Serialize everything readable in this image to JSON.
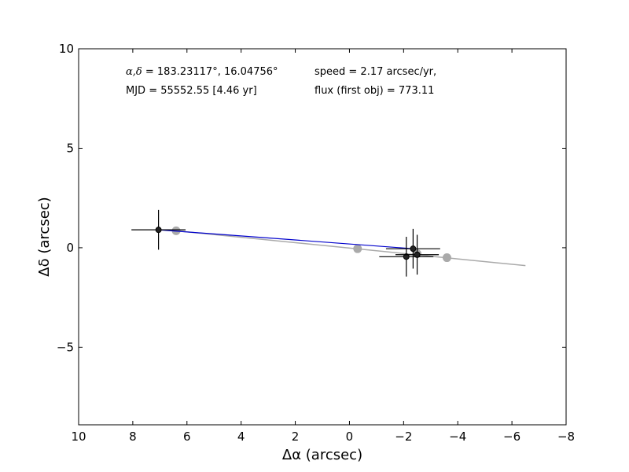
{
  "chart_data": {
    "type": "scatter",
    "xlabel": "Δα (arcsec)",
    "ylabel": "Δδ (arcsec)",
    "xlim": [
      10,
      -8
    ],
    "ylim": [
      -8.9,
      10
    ],
    "x_ticks": [
      10,
      8,
      6,
      4,
      2,
      0,
      -2,
      -4,
      -6,
      -8
    ],
    "y_ticks": [
      -5,
      0,
      5,
      10
    ],
    "x_tick_labels": [
      "10",
      "8",
      "6",
      "4",
      "2",
      "0",
      "−2",
      "−4",
      "−6",
      "−8"
    ],
    "y_tick_labels": [
      "−5",
      "0",
      "5",
      "10"
    ],
    "grid": false,
    "annotations": {
      "coords_prefix": "α,δ",
      "coords_value": " = 183.23117°, 16.04756°",
      "mjd": "MJD = 55552.55 [4.46 yr]",
      "speed": "speed = 2.17 arcsec/yr,",
      "flux": "flux (first obj) = 773.11"
    },
    "fit_line": {
      "color": "#aaaaaa",
      "points": [
        [
          6.4,
          0.85
        ],
        [
          -6.5,
          -0.9
        ]
      ]
    },
    "model_points": {
      "color": "#aaaaaa",
      "points": [
        [
          6.4,
          0.85
        ],
        [
          -0.3,
          -0.05
        ],
        [
          -2.5,
          -0.3
        ],
        [
          -3.6,
          -0.5
        ]
      ]
    },
    "track_line": {
      "color": "#0000cc",
      "points": [
        [
          7.05,
          0.9
        ],
        [
          -2.35,
          -0.05
        ]
      ]
    },
    "observations": {
      "color": "#222222",
      "points": [
        {
          "x": 7.05,
          "y": 0.9,
          "xerr": 1.0,
          "yerr": 1.0
        },
        {
          "x": -2.35,
          "y": -0.05,
          "xerr": 1.0,
          "yerr": 1.0
        },
        {
          "x": -2.1,
          "y": -0.45,
          "xerr": 1.0,
          "yerr": 1.0
        },
        {
          "x": -2.5,
          "y": -0.35,
          "xerr": 0.8,
          "yerr": 1.0
        }
      ]
    }
  }
}
